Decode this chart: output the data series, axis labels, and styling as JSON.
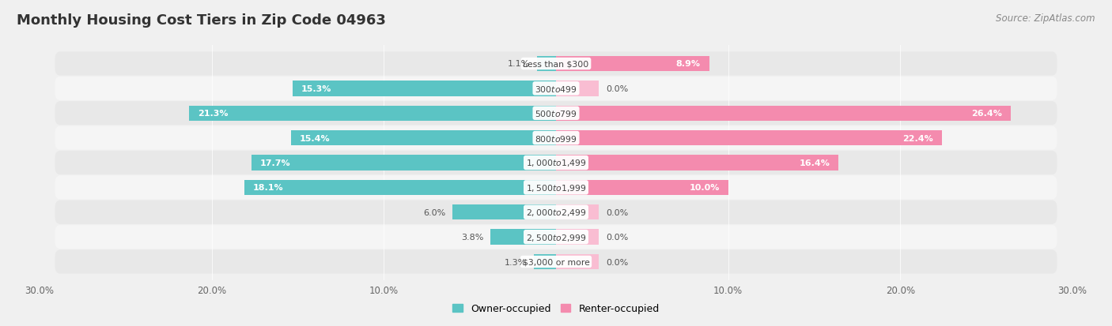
{
  "title": "Monthly Housing Cost Tiers in Zip Code 04963",
  "source": "Source: ZipAtlas.com",
  "categories": [
    "Less than $300",
    "$300 to $499",
    "$500 to $799",
    "$800 to $999",
    "$1,000 to $1,499",
    "$1,500 to $1,999",
    "$2,000 to $2,499",
    "$2,500 to $2,999",
    "$3,000 or more"
  ],
  "owner_values": [
    1.1,
    15.3,
    21.3,
    15.4,
    17.7,
    18.1,
    6.0,
    3.8,
    1.3
  ],
  "renter_values": [
    8.9,
    0.0,
    26.4,
    22.4,
    16.4,
    10.0,
    0.0,
    0.0,
    0.0
  ],
  "owner_color": "#5BC4C4",
  "renter_color": "#F48BAE",
  "owner_color_light": "#8DD8D8",
  "renter_color_light": "#F9BDD2",
  "bg_color": "#F0F0F0",
  "row_bg_even": "#E8E8E8",
  "row_bg_odd": "#F5F5F5",
  "x_max": 30.0,
  "legend_owner": "Owner-occupied",
  "legend_renter": "Renter-occupied",
  "title_fontsize": 13,
  "bar_height": 0.62,
  "label_threshold": 8.0,
  "zero_bar_width": 2.5,
  "xtick_labels": [
    "30.0%",
    "20.0%",
    "10.0%",
    "",
    "10.0%",
    "20.0%",
    "30.0%"
  ],
  "xtick_positions": [
    -30,
    -20,
    -10,
    0,
    10,
    20,
    30
  ]
}
